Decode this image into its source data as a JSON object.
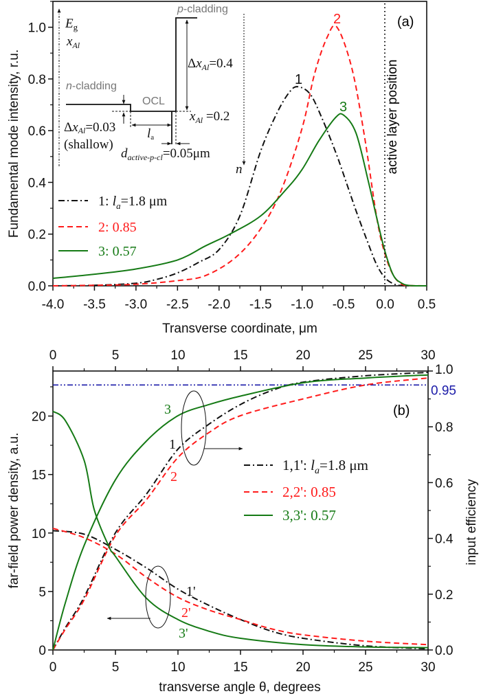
{
  "colors": {
    "black": "#111111",
    "red": "#ff1a1a",
    "green": "#157a15",
    "blue": "#1a1aa8",
    "gray": "#777777"
  },
  "chart_data": [
    {
      "type": "line",
      "panel_label": "(a)",
      "xlabel": "Transverse coordinate, μm",
      "ylabel": "Fundamental mode intensity, r.u.",
      "xlim": [
        -4.0,
        0.5
      ],
      "ylim": [
        0.0,
        1.1
      ],
      "xticks": [
        "-4.0",
        "-3.5",
        "-3.0",
        "-2.5",
        "-2.0",
        "-1.5",
        "-1.0",
        "-0.5",
        "0.0",
        "0.5"
      ],
      "xtick_values": [
        -4.0,
        -3.5,
        -3.0,
        -2.5,
        -2.0,
        -1.5,
        -1.0,
        -0.5,
        0.0,
        0.5
      ],
      "yticks": [
        "0.0",
        "0.2",
        "0.4",
        "0.6",
        "0.8",
        "1.0"
      ],
      "ytick_values": [
        0.0,
        0.2,
        0.4,
        0.6,
        0.8,
        1.0
      ],
      "grid": false,
      "legend_placement": "left-middle",
      "vertical_marker": {
        "x": 0.0,
        "label": "active layer position"
      },
      "series": [
        {
          "name": "1: la=1.8 μm",
          "curve_label": "1",
          "style": "dashdot",
          "color": "#111111",
          "x": [
            -4,
            -3.5,
            -3,
            -2.75,
            -2.5,
            -2.25,
            -2,
            -1.75,
            -1.5,
            -1.3,
            -1.15,
            -1.05,
            -0.9,
            -0.75,
            -0.6,
            -0.5,
            -0.35,
            -0.2,
            -0.1,
            0,
            0.1,
            0.2,
            0.5
          ],
          "y": [
            0,
            0.002,
            0.01,
            0.025,
            0.05,
            0.09,
            0.14,
            0.27,
            0.52,
            0.67,
            0.75,
            0.77,
            0.74,
            0.64,
            0.52,
            0.43,
            0.29,
            0.16,
            0.08,
            0.03,
            0.008,
            0.001,
            0
          ]
        },
        {
          "name": "2: 0.85",
          "curve_label": "2",
          "style": "dashed",
          "color": "#ff1a1a",
          "x": [
            -4,
            -3.5,
            -3,
            -2.5,
            -2.16,
            -1.8,
            -1.5,
            -1.25,
            -1,
            -0.85,
            -0.7,
            -0.58,
            -0.4,
            -0.25,
            -0.1,
            0,
            0.1,
            0.2,
            0.3,
            0.5
          ],
          "y": [
            0,
            0.002,
            0.006,
            0.02,
            0.04,
            0.11,
            0.22,
            0.37,
            0.61,
            0.82,
            0.96,
            1.0,
            0.84,
            0.58,
            0.26,
            0.12,
            0.04,
            0.006,
            0.001,
            0
          ]
        },
        {
          "name": "3: 0.57",
          "curve_label": "3",
          "style": "solid",
          "color": "#157a15",
          "x": [
            -4,
            -3.5,
            -3,
            -2.5,
            -2.16,
            -1.87,
            -1.5,
            -1.2,
            -1,
            -0.8,
            -0.6,
            -0.5,
            -0.35,
            -0.2,
            -0.1,
            0,
            0.1,
            0.2,
            0.3,
            0.5
          ],
          "y": [
            0.029,
            0.045,
            0.065,
            0.1,
            0.155,
            0.2,
            0.27,
            0.37,
            0.45,
            0.56,
            0.65,
            0.66,
            0.59,
            0.4,
            0.26,
            0.13,
            0.04,
            0.01,
            0.001,
            0
          ]
        }
      ]
    },
    {
      "type": "line",
      "panel_label": "(b)",
      "xlabel": "transverse angle θ, degrees",
      "ylabel": "far-field power density, a.u.",
      "y2label": "input efficiency",
      "xlim": [
        0,
        30
      ],
      "ylim": [
        0,
        23.85
      ],
      "y2lim": [
        0.0,
        1.0
      ],
      "xticks": [
        "0",
        "5",
        "10",
        "15",
        "20",
        "25",
        "30"
      ],
      "xtick_values": [
        0,
        5,
        10,
        15,
        20,
        25,
        30
      ],
      "yticks": [
        "0",
        "5",
        "10",
        "15",
        "20"
      ],
      "ytick_values": [
        0,
        5,
        10,
        15,
        20
      ],
      "y2ticks": [
        "0.0",
        "0.2",
        "0.4",
        "0.6",
        "0.8",
        "1.0"
      ],
      "y2tick_values": [
        0.0,
        0.2,
        0.4,
        0.6,
        0.8,
        1.0
      ],
      "grid": false,
      "legend_placement": "center-right",
      "reference_line": {
        "axis": "y2",
        "value": 0.95,
        "label": "0.95",
        "color": "#1a1aa8"
      },
      "legend": [
        {
          "num": "1,1'",
          "sep": ": ",
          "var": "l",
          "sub": "a",
          "val": "=1.8 μm",
          "style": "dashdot",
          "color": "#111111"
        },
        {
          "num": "2,2'",
          "sep": ": ",
          "var": "",
          "sub": "",
          "val": "0.85",
          "style": "dashed",
          "color": "#ff1a1a"
        },
        {
          "num": "3,3'",
          "sep": ": ",
          "var": "",
          "sub": "",
          "val": "0.57",
          "style": "solid",
          "color": "#157a15"
        }
      ],
      "series": [
        {
          "curve_label": "1",
          "axis": "y2",
          "style": "dashdot",
          "color": "#111111",
          "x": [
            0,
            1,
            2.5,
            5,
            7.5,
            10,
            12.5,
            15,
            17.5,
            20,
            25,
            30
          ],
          "y": [
            0,
            0.08,
            0.19,
            0.42,
            0.56,
            0.72,
            0.81,
            0.88,
            0.93,
            0.96,
            0.983,
            0.995
          ]
        },
        {
          "curve_label": "2",
          "axis": "y2",
          "style": "dashed",
          "color": "#ff1a1a",
          "x": [
            0,
            1,
            2.5,
            5,
            7.5,
            10,
            12.5,
            15,
            20,
            25,
            30
          ],
          "y": [
            0,
            0.075,
            0.18,
            0.41,
            0.54,
            0.69,
            0.78,
            0.84,
            0.9,
            0.95,
            0.975
          ]
        },
        {
          "curve_label": "3",
          "axis": "y2",
          "style": "solid",
          "color": "#157a15",
          "x": [
            0,
            1,
            2.5,
            5,
            7.5,
            10,
            12.5,
            15,
            20,
            25,
            30
          ],
          "y": [
            0,
            0.17,
            0.375,
            0.61,
            0.75,
            0.84,
            0.88,
            0.91,
            0.958,
            0.975,
            0.986
          ]
        },
        {
          "curve_label": "1'",
          "axis": "y",
          "style": "dashdot",
          "color": "#111111",
          "x": [
            0,
            2.5,
            5,
            7.5,
            10,
            12.5,
            15,
            17.5,
            20,
            25,
            30
          ],
          "y": [
            10.2,
            9.9,
            8.6,
            7.0,
            5.2,
            3.8,
            2.6,
            1.6,
            1.0,
            0.35,
            0.1
          ]
        },
        {
          "curve_label": "2'",
          "axis": "y",
          "style": "dashed",
          "color": "#ff1a1a",
          "x": [
            0,
            2.5,
            5,
            7.5,
            10,
            12.5,
            15,
            17.5,
            20,
            25,
            30
          ],
          "y": [
            10.4,
            9.6,
            8.2,
            6.2,
            4.5,
            3.4,
            2.6,
            1.8,
            1.3,
            0.75,
            0.45
          ]
        },
        {
          "curve_label": "3'",
          "axis": "y",
          "style": "solid",
          "color": "#157a15",
          "x": [
            0,
            1,
            2.5,
            3.3,
            4.5,
            5,
            7.5,
            10,
            12.5,
            15,
            20,
            25,
            30
          ],
          "y": [
            20.4,
            19.6,
            16.2,
            12.0,
            8.8,
            8.0,
            4.4,
            2.6,
            1.6,
            1.0,
            0.45,
            0.26,
            0.2
          ]
        }
      ]
    }
  ],
  "legend_a": [
    {
      "num": "1: ",
      "var": "l",
      "sub": "a",
      "val": "=1.8 μm"
    },
    {
      "num": "2: ",
      "var": "",
      "sub": "",
      "val": "0.85"
    },
    {
      "num": "3: ",
      "var": "",
      "sub": "",
      "val": "0.57"
    }
  ],
  "inset": {
    "eg": {
      "var": "E",
      "sub": "g"
    },
    "xal": {
      "var": "x",
      "sub": "Al"
    },
    "p_cladding": {
      "var": "p",
      "rest": "-cladding"
    },
    "n_cladding": {
      "var": "n",
      "rest": "-cladding"
    },
    "ocl": "OCL",
    "dx04": {
      "pre": "Δ",
      "var": "x",
      "sub": "Al",
      "post": "=0.4"
    },
    "xal02": {
      "var": "x",
      "sub": "Al",
      "post": " =0.2"
    },
    "dx003": {
      "pre": "Δ",
      "var": "x",
      "sub": "Al",
      "post": "=0.03"
    },
    "shallow": "(shallow)",
    "la": {
      "var": "l",
      "sub": "a"
    },
    "d": {
      "var": "d",
      "sub": "active-p-cl",
      "post": "=0.05μm"
    },
    "n": "n"
  }
}
